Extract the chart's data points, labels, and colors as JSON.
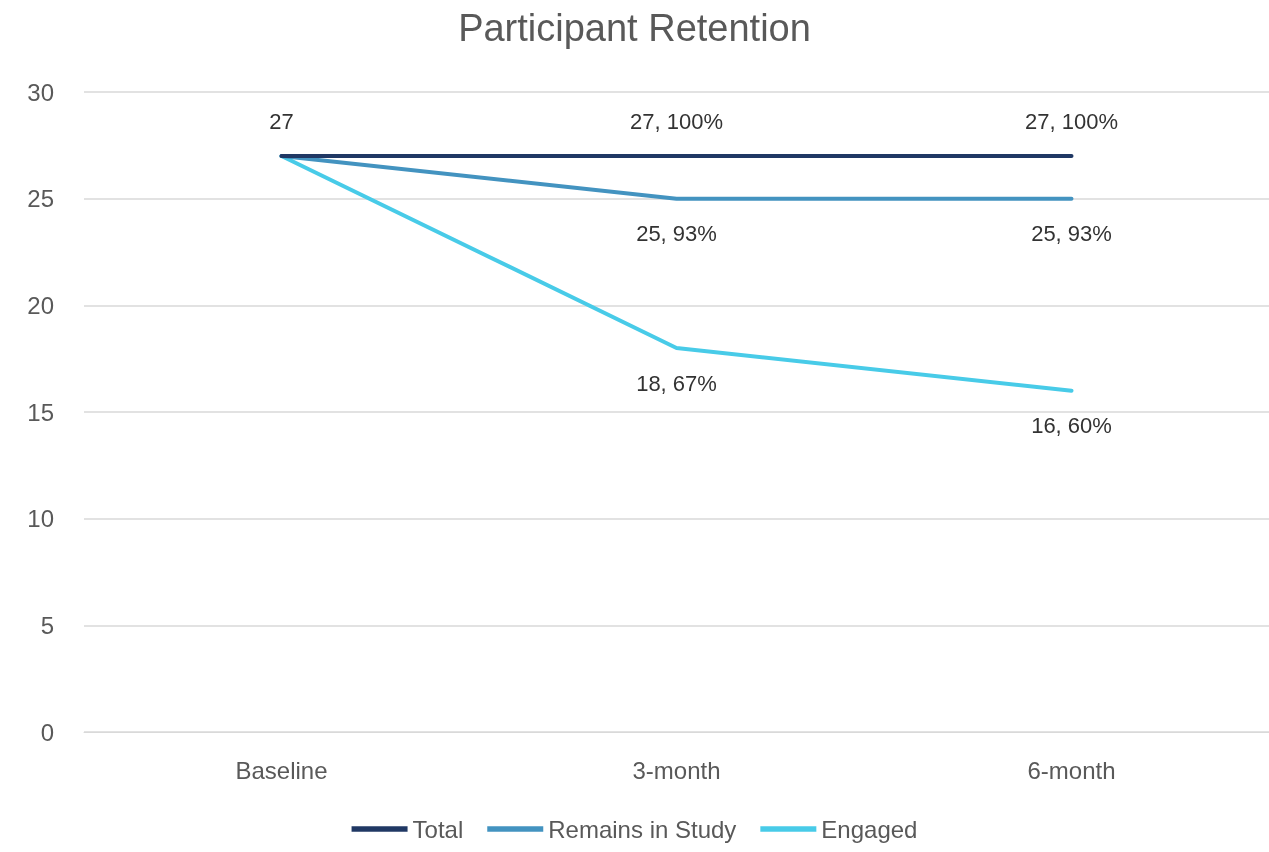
{
  "chart_data": {
    "type": "line",
    "title": "Participant Retention",
    "categories": [
      "Baseline",
      "3-month",
      "6-month"
    ],
    "series": [
      {
        "name": "Total",
        "color": "#203864",
        "values": [
          27,
          27,
          27
        ],
        "value_labels": [
          "27",
          "27, 100%",
          "27, 100%"
        ]
      },
      {
        "name": "Remains in Study",
        "color": "#4393c0",
        "values": [
          27,
          25,
          25
        ],
        "value_labels": [
          null,
          "25, 93%",
          "25, 93%"
        ]
      },
      {
        "name": "Engaged",
        "color": "#48cbe8",
        "values": [
          27,
          18,
          16
        ],
        "value_labels": [
          null,
          "18, 67%",
          "16, 60%"
        ]
      }
    ],
    "ylim": [
      0,
      30
    ],
    "yticks": [
      0,
      5,
      10,
      15,
      20,
      25,
      30
    ],
    "grid": "y",
    "legend": "bottom",
    "marker": "none",
    "line_style": "solid"
  }
}
